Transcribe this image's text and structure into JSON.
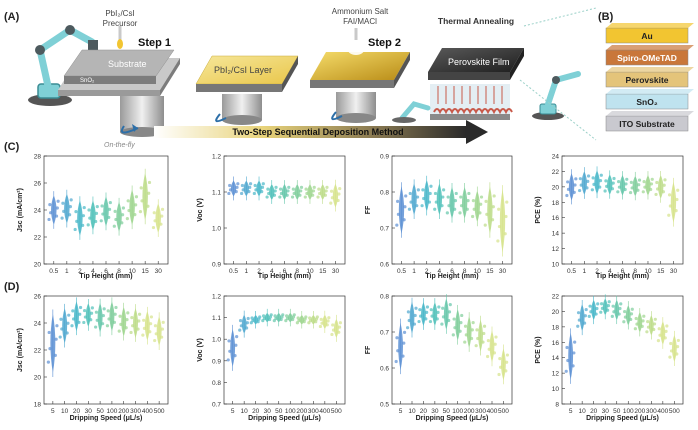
{
  "panels": {
    "A": "(A)",
    "B": "(B)",
    "C": "(C)",
    "D": "(D)"
  },
  "schematic": {
    "precursor1": "PbI₂/CsI",
    "precursor1_sub": "Precursor",
    "step1": "Step 1",
    "substrate": "Substrate",
    "sno2": "SnO₂",
    "on_the_fly": "On-the-fly",
    "layer": "PbI₂/CsI  Layer",
    "precursor2": "Ammonium Salt",
    "precursor2_sub": "FAI/MACl",
    "step2": "Step 2",
    "annealing": "Thermal Annealing",
    "film": "Perovskite Film",
    "method": "Two-Step Sequential Deposition Method"
  },
  "stack": {
    "layers": [
      "Au",
      "Spiro-OMeTAD",
      "Perovskite",
      "SnO₂",
      "ITO Substrate"
    ],
    "colors": [
      "#f2c531",
      "#c9773a",
      "#e4c47a",
      "#bfe3ef",
      "#c9c9cf"
    ]
  },
  "colors": {
    "c_series": [
      "#5b8fd3",
      "#4ea7cf",
      "#46b6c8",
      "#4ec0b9",
      "#64c6a9",
      "#7ecd9a",
      "#9dd58d",
      "#bcdc87",
      "#d6e38a"
    ]
  },
  "chart_data": [
    {
      "type": "violin",
      "ylabel": "Jsc (mA/cm²)",
      "xlabel": "Tip Height (mm)",
      "ylim": [
        20,
        28
      ],
      "yticks": [
        20,
        22,
        24,
        26,
        28
      ],
      "categories": [
        "0.5",
        "1",
        "2",
        "4",
        "6",
        "8",
        "10",
        "15",
        "30"
      ],
      "medians": [
        24.0,
        24.1,
        23.4,
        23.6,
        23.9,
        23.5,
        24.2,
        25.0,
        23.4
      ],
      "spread": [
        0.5,
        0.5,
        0.6,
        0.5,
        0.5,
        0.5,
        0.6,
        0.8,
        0.5
      ]
    },
    {
      "type": "violin",
      "ylabel": "Voc (V)",
      "xlabel": "Tip Height (mm)",
      "ylim": [
        0.9,
        1.2
      ],
      "yticks": [
        0.9,
        1.0,
        1.1,
        1.2
      ],
      "categories": [
        "0.5",
        "1",
        "2",
        "4",
        "6",
        "8",
        "10",
        "15",
        "30"
      ],
      "medians": [
        1.11,
        1.11,
        1.11,
        1.1,
        1.1,
        1.1,
        1.1,
        1.1,
        1.09
      ],
      "spread": [
        0.01,
        0.01,
        0.01,
        0.01,
        0.01,
        0.01,
        0.01,
        0.01,
        0.015
      ]
    },
    {
      "type": "violin",
      "ylabel": "FF",
      "xlabel": "Tip Height (mm)",
      "ylim": [
        0.6,
        0.9
      ],
      "yticks": [
        0.6,
        0.7,
        0.8,
        0.9
      ],
      "categories": [
        "0.5",
        "1",
        "2",
        "4",
        "6",
        "8",
        "10",
        "15",
        "30"
      ],
      "medians": [
        0.75,
        0.78,
        0.79,
        0.78,
        0.77,
        0.77,
        0.76,
        0.75,
        0.72
      ],
      "spread": [
        0.03,
        0.02,
        0.02,
        0.02,
        0.02,
        0.02,
        0.02,
        0.03,
        0.04
      ]
    },
    {
      "type": "violin",
      "ylabel": "PCE (%)",
      "xlabel": "Tip Height (mm)",
      "ylim": [
        10,
        24
      ],
      "yticks": [
        10,
        12,
        14,
        16,
        18,
        20,
        22,
        24
      ],
      "categories": [
        "0.5",
        "1",
        "2",
        "4",
        "6",
        "8",
        "10",
        "15",
        "30"
      ],
      "medians": [
        20.0,
        20.5,
        20.6,
        20.3,
        20.2,
        20.1,
        20.2,
        20.0,
        18.0
      ],
      "spread": [
        0.8,
        0.7,
        0.7,
        0.6,
        0.6,
        0.6,
        0.6,
        0.7,
        1.2
      ]
    },
    {
      "type": "violin",
      "ylabel": "Jsc (mA/cm²)",
      "xlabel": "Dripping Speed (μL/s)",
      "ylim": [
        18,
        26
      ],
      "yticks": [
        18,
        20,
        22,
        24,
        26
      ],
      "categories": [
        "5",
        "10",
        "20",
        "30",
        "50",
        "100",
        "200",
        "300",
        "400",
        "500"
      ],
      "medians": [
        22.5,
        23.8,
        24.5,
        24.6,
        24.4,
        24.5,
        24.1,
        24.0,
        23.8,
        23.4
      ],
      "spread": [
        1.0,
        0.6,
        0.5,
        0.4,
        0.5,
        0.5,
        0.5,
        0.5,
        0.5,
        0.5
      ]
    },
    {
      "type": "violin",
      "ylabel": "Voc (V)",
      "xlabel": "Dripping Speed (μL/s)",
      "ylim": [
        0.7,
        1.2
      ],
      "yticks": [
        0.7,
        0.8,
        0.9,
        1.0,
        1.1,
        1.2
      ],
      "categories": [
        "5",
        "10",
        "20",
        "30",
        "50",
        "100",
        "200",
        "300",
        "400",
        "500"
      ],
      "medians": [
        0.96,
        1.07,
        1.09,
        1.1,
        1.1,
        1.1,
        1.09,
        1.09,
        1.08,
        1.05
      ],
      "spread": [
        0.04,
        0.02,
        0.01,
        0.01,
        0.01,
        0.01,
        0.01,
        0.01,
        0.015,
        0.02
      ]
    },
    {
      "type": "violin",
      "ylabel": "FF",
      "xlabel": "Dripping Speed (μL/s)",
      "ylim": [
        0.5,
        0.8
      ],
      "yticks": [
        0.5,
        0.6,
        0.7,
        0.8
      ],
      "categories": [
        "5",
        "10",
        "20",
        "30",
        "50",
        "100",
        "200",
        "300",
        "400",
        "500"
      ],
      "medians": [
        0.66,
        0.74,
        0.75,
        0.75,
        0.75,
        0.72,
        0.7,
        0.69,
        0.66,
        0.61
      ],
      "spread": [
        0.03,
        0.02,
        0.015,
        0.015,
        0.02,
        0.02,
        0.02,
        0.02,
        0.02,
        0.02
      ]
    },
    {
      "type": "violin",
      "ylabel": "PCE (%)",
      "xlabel": "Dripping Speed (μL/s)",
      "ylim": [
        8,
        22
      ],
      "yticks": [
        8,
        10,
        12,
        14,
        16,
        18,
        20,
        22
      ],
      "categories": [
        "5",
        "10",
        "20",
        "30",
        "50",
        "100",
        "200",
        "300",
        "400",
        "500"
      ],
      "medians": [
        14.2,
        19.2,
        20.2,
        20.6,
        20.2,
        19.5,
        18.6,
        18.2,
        17.2,
        15.2
      ],
      "spread": [
        1.4,
        0.8,
        0.6,
        0.5,
        0.6,
        0.6,
        0.6,
        0.6,
        0.7,
        0.8
      ]
    }
  ]
}
